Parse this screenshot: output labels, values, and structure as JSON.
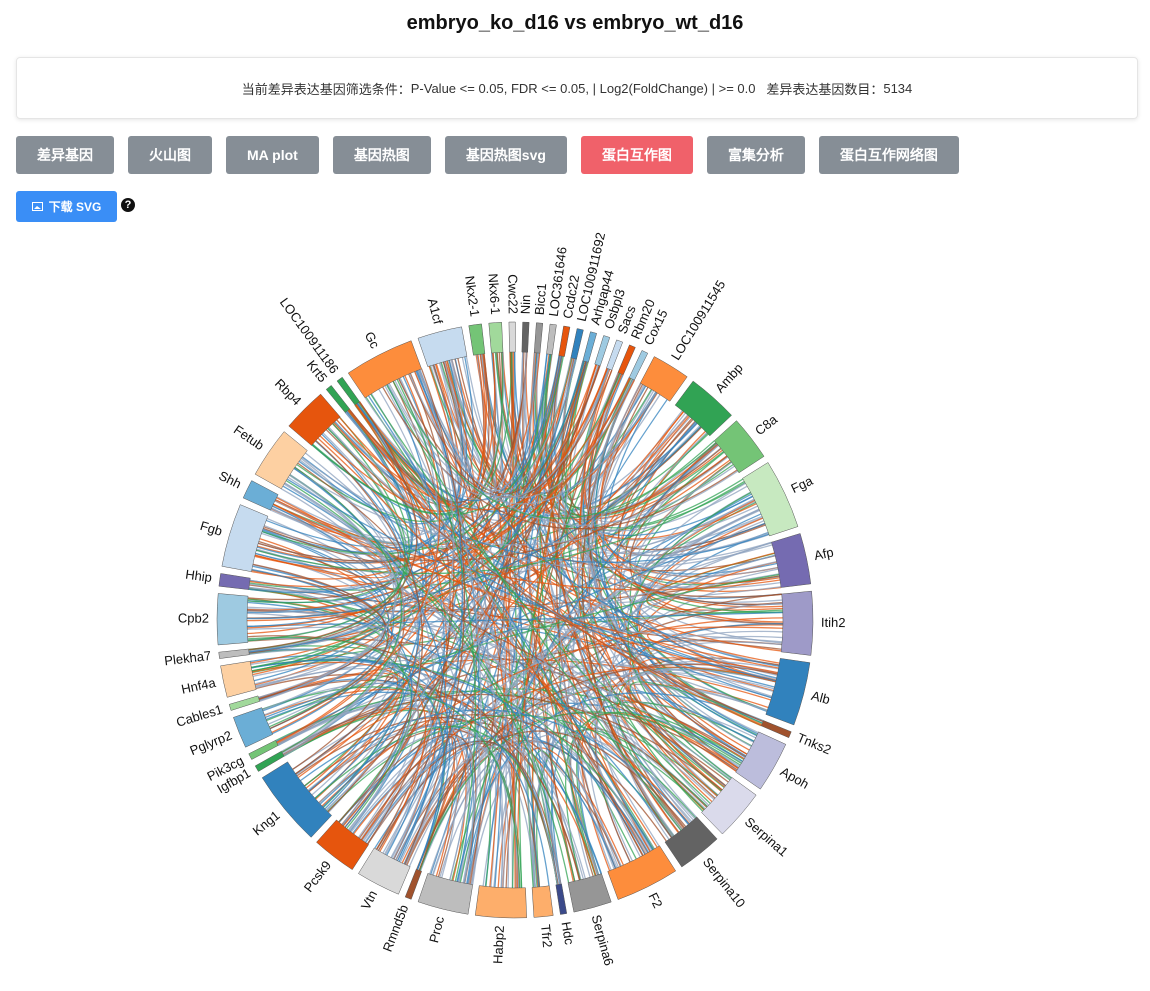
{
  "header": {
    "title": "embryo_ko_d16 vs embryo_wt_d16"
  },
  "filter": {
    "label": "当前差异表达基因筛选条件：",
    "conditions": "P-Value <= 0.05, FDR <= 0.05, | Log2(FoldChange) | >= 0.0",
    "count_label": "差异表达基因数目：",
    "count": 5134
  },
  "tabs": [
    "差异基因",
    "火山图",
    "MA plot",
    "基因热图",
    "基因热图svg",
    "蛋白互作图",
    "富集分析",
    "蛋白互作网络图"
  ],
  "active_tab": 5,
  "download": "下载 SVG",
  "help": "?",
  "chord": {
    "nodes": [
      {
        "label": "A1cf",
        "color": "#c6dbef",
        "size": 7
      },
      {
        "label": "Nkx2-1",
        "color": "#74c476",
        "size": 2
      },
      {
        "label": "Nkx6-1",
        "color": "#a1d99b",
        "size": 2
      },
      {
        "label": "Cwc22",
        "color": "#d9d9d9",
        "size": 1
      },
      {
        "label": "Nin",
        "color": "#636363",
        "size": 1
      },
      {
        "label": "Bicc1",
        "color": "#969696",
        "size": 1
      },
      {
        "label": "LOC361646",
        "color": "#bdbdbd",
        "size": 1
      },
      {
        "label": "Ccdc22",
        "color": "#e6550d",
        "size": 1
      },
      {
        "label": "LOC100911692",
        "color": "#3182bd",
        "size": 1
      },
      {
        "label": "Arhgap44",
        "color": "#6baed6",
        "size": 1
      },
      {
        "label": "Osbpl3",
        "color": "#9ecae1",
        "size": 1
      },
      {
        "label": "Sacs",
        "color": "#c6dbef",
        "size": 1
      },
      {
        "label": "Rbm20",
        "color": "#e6550d",
        "size": 1
      },
      {
        "label": "Cox15",
        "color": "#9ecae1",
        "size": 1
      },
      {
        "label": "LOC100911545",
        "color": "#fd8d3c",
        "size": 6
      },
      {
        "label": "Ambp",
        "color": "#31a354",
        "size": 8
      },
      {
        "label": "C8a",
        "color": "#74c476",
        "size": 7
      },
      {
        "label": "Fga",
        "color": "#c7e9c0",
        "size": 11
      },
      {
        "label": "Afp",
        "color": "#756bb1",
        "size": 8
      },
      {
        "label": "Itih2",
        "color": "#9e9ac8",
        "size": 10
      },
      {
        "label": "Alb",
        "color": "#3182bd",
        "size": 10
      },
      {
        "label": "Tnks2",
        "color": "#a0522d",
        "size": 1
      },
      {
        "label": "Apoh",
        "color": "#bcbddc",
        "size": 8
      },
      {
        "label": "Serpina1",
        "color": "#dadaeb",
        "size": 8
      },
      {
        "label": "Serpina10",
        "color": "#636363",
        "size": 7
      },
      {
        "label": "F2",
        "color": "#fd8d3c",
        "size": 10
      },
      {
        "label": "Serpina6",
        "color": "#969696",
        "size": 6
      },
      {
        "label": "Hdc",
        "color": "#3b4a8a",
        "size": 1
      },
      {
        "label": "Tfr2",
        "color": "#fdae6b",
        "size": 3
      },
      {
        "label": "Habp2",
        "color": "#fdae6b",
        "size": 8
      },
      {
        "label": "Proc",
        "color": "#bdbdbd",
        "size": 8
      },
      {
        "label": "Rmnd5b",
        "color": "#a0522d",
        "size": 1
      },
      {
        "label": "Vtn",
        "color": "#d9d9d9",
        "size": 7
      },
      {
        "label": "Pcsk9",
        "color": "#e6550d",
        "size": 7
      },
      {
        "label": "Kng1",
        "color": "#3182bd",
        "size": 12
      },
      {
        "label": "Igfbp1",
        "color": "#31a354",
        "size": 1
      },
      {
        "label": "Pik3cg",
        "color": "#74c476",
        "size": 1
      },
      {
        "label": "Pglyrp2",
        "color": "#6baed6",
        "size": 5
      },
      {
        "label": "Cables1",
        "color": "#a1d99b",
        "size": 1
      },
      {
        "label": "Hnf4a",
        "color": "#fdd0a2",
        "size": 5
      },
      {
        "label": "Plekha7",
        "color": "#bdbdbd",
        "size": 1
      },
      {
        "label": "Cpb2",
        "color": "#9ecae1",
        "size": 8
      },
      {
        "label": "Hhip",
        "color": "#756bb1",
        "size": 2
      },
      {
        "label": "Fgb",
        "color": "#c6dbef",
        "size": 10
      },
      {
        "label": "Shh",
        "color": "#6baed6",
        "size": 3
      },
      {
        "label": "Fetub",
        "color": "#fdd0a2",
        "size": 8
      },
      {
        "label": "Rbp4",
        "color": "#e6550d",
        "size": 7
      },
      {
        "label": "Krt5",
        "color": "#31a354",
        "size": 1
      },
      {
        "label": "LOC100911186",
        "color": "#31a354",
        "size": 1
      },
      {
        "label": "Gc",
        "color": "#fd8d3c",
        "size": 11
      }
    ]
  }
}
